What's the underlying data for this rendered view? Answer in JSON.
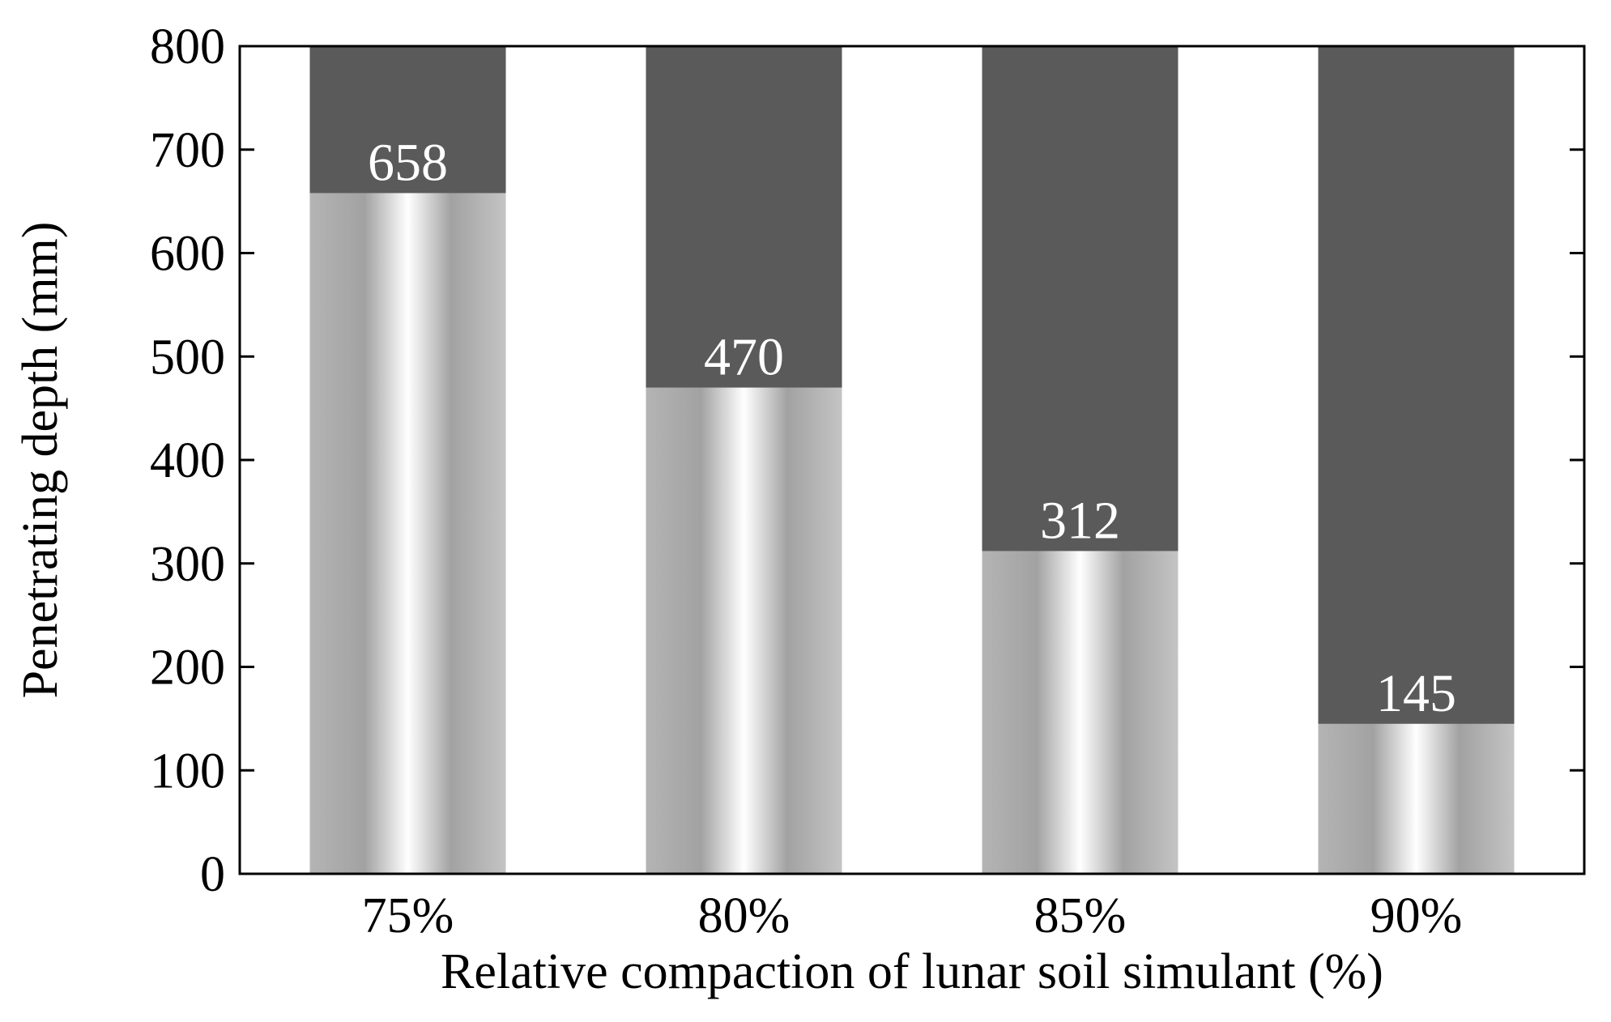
{
  "chart_data": {
    "type": "bar",
    "categories": [
      "75%",
      "80%",
      "85%",
      "90%"
    ],
    "values": [
      658,
      470,
      312,
      145
    ],
    "data_labels": [
      "658",
      "470",
      "312",
      "145"
    ],
    "background_total": 800,
    "xlabel": "Relative compaction of lunar soil simulant (%)",
    "ylabel": "Penetrating depth (mm)",
    "ylim": [
      0,
      800
    ],
    "yticks": [
      0,
      100,
      200,
      300,
      400,
      500,
      600,
      700,
      800
    ],
    "grid": false,
    "legend": "none",
    "colors": {
      "background_bar": "#5a5a5a",
      "bar_edge": "#a8a8a8",
      "bar_center": "#ffffff",
      "data_label": "#ffffff"
    }
  }
}
